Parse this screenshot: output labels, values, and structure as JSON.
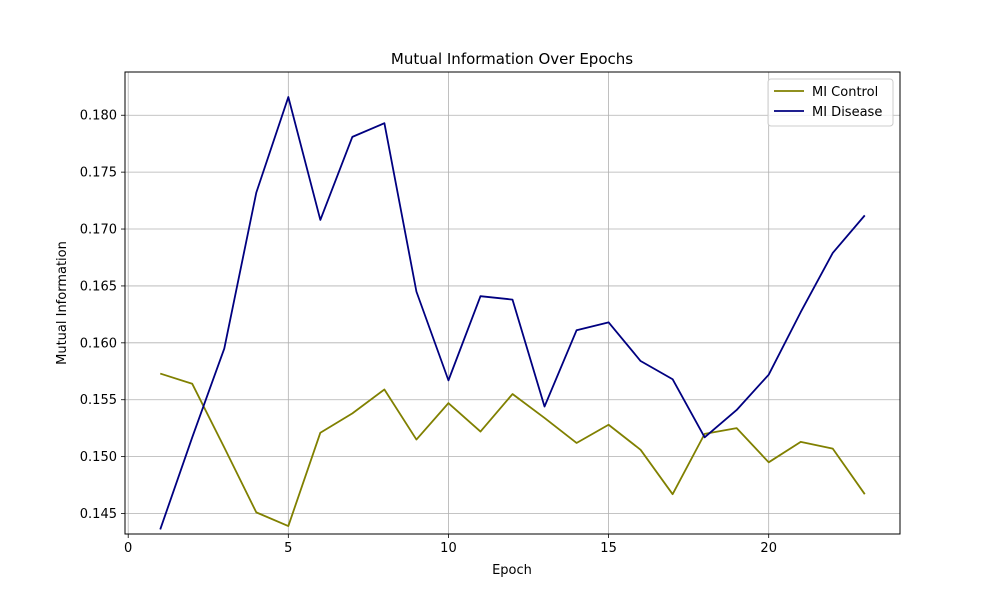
{
  "chart_data": {
    "type": "line",
    "title": "Mutual Information Over Epochs",
    "xlabel": "Epoch",
    "ylabel": "Mutual Information",
    "xlim": [
      -0.1,
      24.1
    ],
    "ylim": [
      0.1432,
      0.1838
    ],
    "xticks": [
      0,
      5,
      10,
      15,
      20
    ],
    "yticks": [
      0.145,
      0.15,
      0.155,
      0.16,
      0.165,
      0.17,
      0.175,
      0.18
    ],
    "ytick_labels": [
      "0.145",
      "0.150",
      "0.155",
      "0.160",
      "0.165",
      "0.170",
      "0.175",
      "0.180"
    ],
    "grid": true,
    "legend_position": "upper right",
    "x": [
      1,
      2,
      3,
      4,
      5,
      6,
      7,
      8,
      9,
      10,
      11,
      12,
      13,
      14,
      15,
      16,
      17,
      18,
      19,
      20,
      21,
      22,
      23
    ],
    "series": [
      {
        "name": "MI Control",
        "color": "#808000",
        "values": [
          0.1573,
          0.1564,
          0.1508,
          0.1451,
          0.1439,
          0.1521,
          0.1538,
          0.1559,
          0.1515,
          0.1547,
          0.1522,
          0.1555,
          0.1534,
          0.1512,
          0.1528,
          0.1506,
          0.1467,
          0.152,
          0.1525,
          0.1495,
          0.1513,
          0.1507,
          0.1467
        ]
      },
      {
        "name": "MI Disease",
        "color": "#000080",
        "values": [
          0.1436,
          0.1517,
          0.1595,
          0.1732,
          0.1816,
          0.1708,
          0.1781,
          0.1793,
          0.1645,
          0.1567,
          0.1641,
          0.1638,
          0.1544,
          0.1611,
          0.1618,
          0.1584,
          0.1568,
          0.1517,
          0.1541,
          0.1572,
          0.1627,
          0.1679,
          0.1712
        ]
      }
    ]
  }
}
